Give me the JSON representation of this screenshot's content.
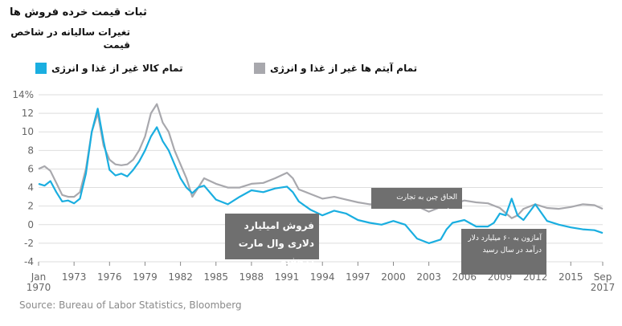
{
  "title": "ثبات قیمت خرده فروش ها",
  "subtitle": "تغیرات سالیانه در شاخص قیمت",
  "legend": [
    {
      "label": "تمام کالا غیر از غذا و انرژی",
      "color": "#1aaee0"
    },
    {
      "label": "تمام آیتم ها غیر از غذا و انرژی",
      "color": "#a8a8ad"
    }
  ],
  "annotations": {
    "walmart": "فروش امیلیارد دلاری وال مارت درهفته",
    "china": "الحاق چین به تجارت جهانی",
    "amazon": "آمازون به ۶۰ میلیارد دلار درآمد در سال رسید"
  },
  "source": "Source: Bureau of Labor Statistics, Bloomberg",
  "chart_data": {
    "type": "line",
    "ylim": [
      -4,
      14
    ],
    "xlim": [
      1970.0,
      2017.7
    ],
    "y_ticks": [
      {
        "value": 14,
        "label": "14%"
      },
      {
        "value": 12,
        "label": "12"
      },
      {
        "value": 10,
        "label": "10"
      },
      {
        "value": 8,
        "label": "8"
      },
      {
        "value": 6,
        "label": "6"
      },
      {
        "value": 4,
        "label": "4"
      },
      {
        "value": 2,
        "label": "2"
      },
      {
        "value": 0,
        "label": "0"
      },
      {
        "value": -2,
        "label": "-2"
      },
      {
        "value": -4,
        "label": "-4"
      }
    ],
    "x_ticks": [
      {
        "value": 1970,
        "label": "Jan",
        "label2": "1970"
      },
      {
        "value": 1973,
        "label": "1973"
      },
      {
        "value": 1976,
        "label": "1976"
      },
      {
        "value": 1979,
        "label": "1979"
      },
      {
        "value": 1982,
        "label": "1982"
      },
      {
        "value": 1985,
        "label": "1985"
      },
      {
        "value": 1988,
        "label": "1988"
      },
      {
        "value": 1991,
        "label": "1991"
      },
      {
        "value": 1994,
        "label": "1994"
      },
      {
        "value": 1997,
        "label": "1997"
      },
      {
        "value": 2000,
        "label": "2000"
      },
      {
        "value": 2003,
        "label": "2003"
      },
      {
        "value": 2006,
        "label": "2006"
      },
      {
        "value": 2009,
        "label": "2009"
      },
      {
        "value": 2012,
        "label": "2012"
      },
      {
        "value": 2015,
        "label": "2015"
      },
      {
        "value": 2017.7,
        "label": "Sep",
        "label2": "2017"
      }
    ],
    "series": [
      {
        "name": "تمام آیتم ها غیر از غذا و انرژی",
        "color": "#a8a8ad",
        "x": [
          1970.0,
          1970.5,
          1971.0,
          1971.5,
          1972.0,
          1972.5,
          1973.0,
          1973.5,
          1974.0,
          1974.5,
          1975.0,
          1975.5,
          1976.0,
          1976.5,
          1977.0,
          1977.5,
          1978.0,
          1978.5,
          1979.0,
          1979.5,
          1980.0,
          1980.5,
          1981.0,
          1981.5,
          1982.0,
          1982.5,
          1983.0,
          1983.5,
          1984.0,
          1985.0,
          1986.0,
          1987.0,
          1988.0,
          1989.0,
          1990.0,
          1991.0,
          1991.5,
          1992.0,
          1993.0,
          1994.0,
          1995.0,
          1996.0,
          1997.0,
          1998.0,
          1999.0,
          2000.0,
          2001.0,
          2002.0,
          2003.0,
          2004.0,
          2005.0,
          2006.0,
          2007.0,
          2008.0,
          2009.0,
          2010.0,
          2010.5,
          2011.0,
          2012.0,
          2013.0,
          2014.0,
          2015.0,
          2016.0,
          2017.0,
          2017.7
        ],
        "values": [
          6.0,
          6.3,
          5.8,
          4.5,
          3.2,
          3.0,
          3.0,
          3.5,
          6.0,
          10.0,
          12.0,
          8.5,
          7.0,
          6.5,
          6.4,
          6.5,
          7.0,
          8.0,
          9.5,
          12.0,
          13.0,
          11.0,
          10.0,
          8.0,
          6.5,
          5.0,
          3.0,
          4.0,
          5.0,
          4.4,
          4.0,
          4.0,
          4.4,
          4.5,
          5.0,
          5.6,
          5.0,
          3.8,
          3.3,
          2.8,
          3.0,
          2.7,
          2.4,
          2.2,
          2.1,
          2.6,
          2.6,
          2.0,
          1.4,
          1.9,
          2.2,
          2.6,
          2.4,
          2.3,
          1.8,
          0.7,
          1.0,
          1.7,
          2.2,
          1.8,
          1.7,
          1.9,
          2.2,
          2.1,
          1.7
        ]
      },
      {
        "name": "تمام کالا غیر از غذا و انرژی",
        "color": "#1aaee0",
        "x": [
          1970.0,
          1970.5,
          1971.0,
          1971.5,
          1972.0,
          1972.5,
          1973.0,
          1973.5,
          1974.0,
          1974.5,
          1975.0,
          1975.5,
          1976.0,
          1976.5,
          1977.0,
          1977.5,
          1978.0,
          1978.5,
          1979.0,
          1979.5,
          1980.0,
          1980.5,
          1981.0,
          1981.5,
          1982.0,
          1982.5,
          1983.0,
          1983.5,
          1984.0,
          1985.0,
          1986.0,
          1987.0,
          1988.0,
          1989.0,
          1990.0,
          1991.0,
          1991.5,
          1992.0,
          1993.0,
          1994.0,
          1995.0,
          1996.0,
          1997.0,
          1998.0,
          1999.0,
          2000.0,
          2001.0,
          2002.0,
          2003.0,
          2004.0,
          2004.5,
          2005.0,
          2006.0,
          2007.0,
          2008.0,
          2008.5,
          2009.0,
          2009.5,
          2010.0,
          2010.5,
          2011.0,
          2012.0,
          2013.0,
          2014.0,
          2015.0,
          2016.0,
          2017.0,
          2017.7
        ],
        "values": [
          4.4,
          4.2,
          4.7,
          3.5,
          2.5,
          2.6,
          2.3,
          2.8,
          5.5,
          10.0,
          12.5,
          9.0,
          5.9,
          5.3,
          5.5,
          5.2,
          5.9,
          6.8,
          8.0,
          9.5,
          10.5,
          9.0,
          8.0,
          6.5,
          5.0,
          4.0,
          3.4,
          4.0,
          4.2,
          2.7,
          2.2,
          3.0,
          3.7,
          3.5,
          3.9,
          4.1,
          3.5,
          2.5,
          1.6,
          1.0,
          1.5,
          1.2,
          0.5,
          0.2,
          0.0,
          0.4,
          0.0,
          -1.5,
          -2.0,
          -1.6,
          -0.5,
          0.2,
          0.5,
          -0.2,
          -0.2,
          0.2,
          1.2,
          1.0,
          2.8,
          1.0,
          0.5,
          2.2,
          0.4,
          0.0,
          -0.3,
          -0.5,
          -0.6,
          -0.9
        ]
      }
    ]
  }
}
